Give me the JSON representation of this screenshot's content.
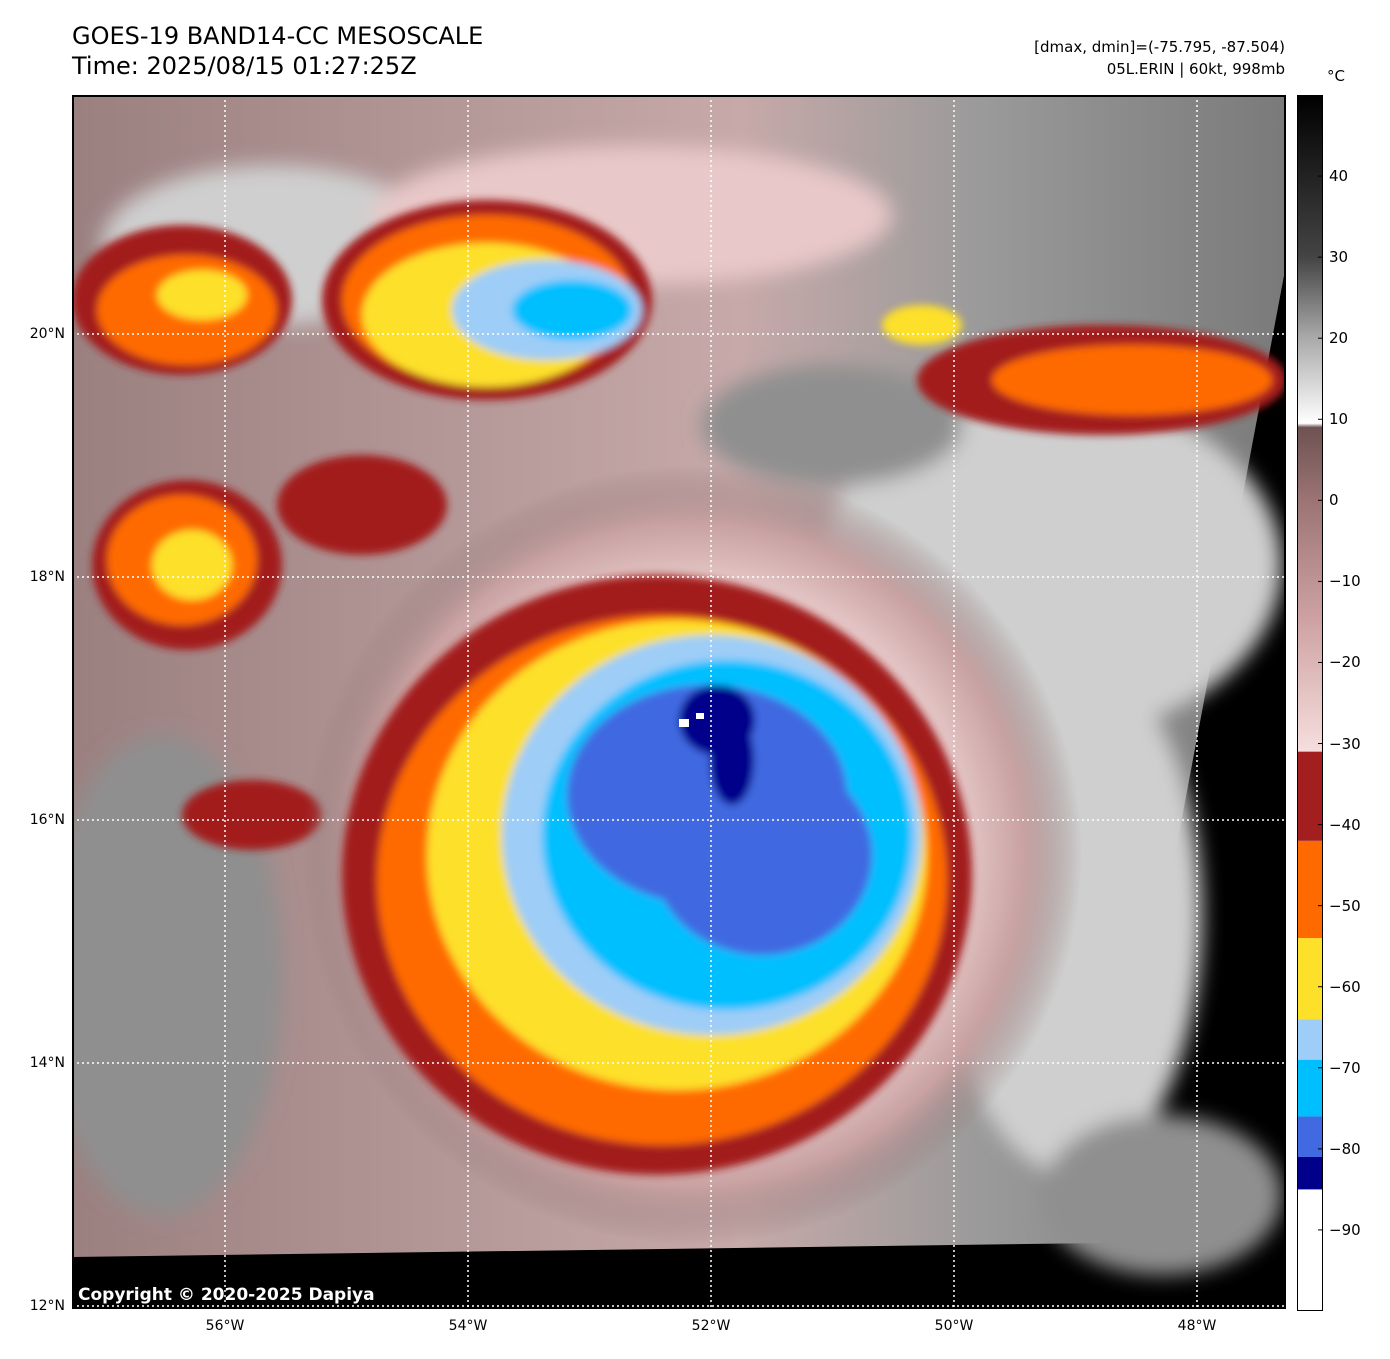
{
  "title": {
    "line1": "GOES-19 BAND14-CC MESOSCALE",
    "line2": "Time: 2025/08/15 01:27:25Z"
  },
  "info": {
    "line1": "[dmax, dmin]=(-75.795, -87.504)",
    "line2": "05L.ERIN | 60kt, 998mb"
  },
  "copyright": "Copyright © 2020-2025 Dapiya",
  "axes": {
    "lat_labels": [
      "20°N",
      "18°N",
      "16°N",
      "14°N",
      "12°N"
    ],
    "lat_values": [
      20,
      18,
      16,
      14,
      12
    ],
    "lon_labels": [
      "56°W",
      "54°W",
      "52°W",
      "50°W",
      "48°W"
    ],
    "lon_values": [
      -56,
      -54,
      -52,
      -50,
      -48
    ]
  },
  "colorbar": {
    "unit": "°C",
    "tick_labels": [
      "40",
      "30",
      "20",
      "10",
      "0",
      "−10",
      "−20",
      "−30",
      "−40",
      "−50",
      "−60",
      "−70",
      "−80",
      "−90"
    ],
    "tick_values": [
      40,
      30,
      20,
      10,
      0,
      -10,
      -20,
      -30,
      -40,
      -50,
      -60,
      -70,
      -80,
      -90
    ],
    "range": [
      -100,
      50
    ],
    "segments": [
      {
        "from": -100,
        "to": -85,
        "color": "#ffffff"
      },
      {
        "from": -85,
        "to": -81,
        "color": "#00008b"
      },
      {
        "from": -81,
        "to": -76,
        "color": "#4169e1"
      },
      {
        "from": -76,
        "to": -69,
        "color": "#00bfff"
      },
      {
        "from": -69,
        "to": -64,
        "color": "#9ecdf7"
      },
      {
        "from": -64,
        "to": -54,
        "color": "#fde029"
      },
      {
        "from": -54,
        "to": -42,
        "color": "#ff6a00"
      },
      {
        "from": -42,
        "to": -31,
        "color": "#a31f1f"
      }
    ],
    "gradient_stops": [
      {
        "value": -31,
        "color": "#f6dede"
      },
      {
        "value": -15,
        "color": "#cfa3a3"
      },
      {
        "value": 0,
        "color": "#9c7474"
      },
      {
        "value": 9,
        "color": "#6e5252"
      },
      {
        "value": 9.5,
        "color": "#ffffff"
      },
      {
        "value": 20,
        "color": "#aaaaaa"
      },
      {
        "value": 30,
        "color": "#444444"
      },
      {
        "value": 50,
        "color": "#000000"
      }
    ]
  },
  "colors": {
    "eye": "#00008b",
    "inner": "#4169e1",
    "cyan": "#00bfff",
    "lightblue": "#9ecdf7",
    "yellow": "#fde029",
    "orange": "#ff6a00",
    "darkred": "#a31f1f",
    "pink": "#e8c8c8",
    "mauve": "#a88585",
    "gray": "#8f8f8f",
    "lightgray": "#cfcfcf",
    "black": "#000000"
  }
}
